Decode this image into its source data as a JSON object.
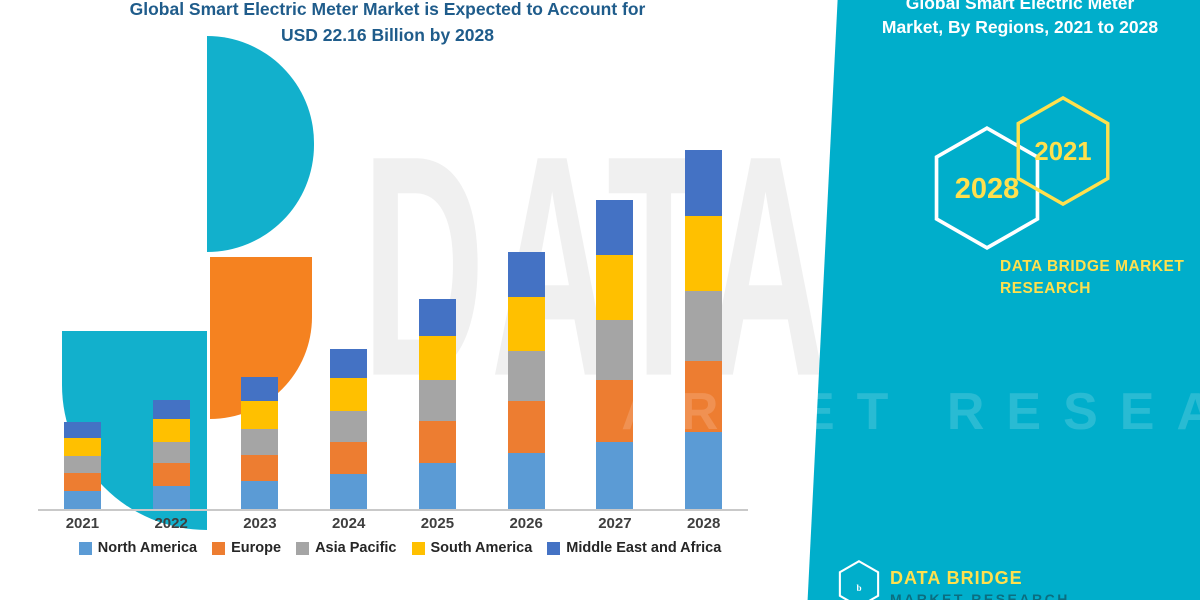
{
  "header": {
    "chart_title_line1": "Global Smart Electric Meter Market is Expected to Account for",
    "chart_title_line2": "USD 22.16 Billion by 2028"
  },
  "panel": {
    "title_line1": "Global Smart Electric Meter",
    "title_line2": "Market, By Regions, 2021 to 2028",
    "hex_end_year": "2028",
    "hex_start_year": "2021",
    "brand_line1": "DATA BRIDGE MARKET",
    "brand_line2": "RESEARCH",
    "footer_logo_letter": "b",
    "footer_brand": "DATA BRIDGE",
    "footer_sub": "MARKET RESEARCH",
    "colors": {
      "teal": "#00aecb",
      "yellow": "#ffe04d",
      "white": "#ffffff"
    }
  },
  "watermark": {
    "line1": "DATA BRIDGE",
    "line2": "MARKET RESEARCH"
  },
  "chart_data": {
    "type": "bar",
    "stacked": true,
    "title": "Global Smart Electric Meter Market is Expected to Account for USD 22.16 Billion by 2028",
    "unit": "USD Billion",
    "total_2028": 22.16,
    "categories": [
      "2021",
      "2022",
      "2023",
      "2024",
      "2025",
      "2026",
      "2027",
      "2028"
    ],
    "series": [
      {
        "name": "North America",
        "color": "#5B9BD5",
        "values": [
          1.2,
          1.5,
          1.8,
          2.2,
          2.9,
          3.5,
          4.2,
          4.8
        ]
      },
      {
        "name": "Europe",
        "color": "#ED7D31",
        "values": [
          1.1,
          1.4,
          1.6,
          2.0,
          2.6,
          3.2,
          3.8,
          4.4
        ]
      },
      {
        "name": "Asia Pacific",
        "color": "#A5A5A5",
        "values": [
          1.05,
          1.3,
          1.6,
          1.9,
          2.5,
          3.1,
          3.7,
          4.3
        ]
      },
      {
        "name": "South America",
        "color": "#FFC000",
        "values": [
          1.1,
          1.4,
          1.7,
          2.0,
          2.7,
          3.3,
          4.0,
          4.6
        ]
      },
      {
        "name": "Middle East and Africa",
        "color": "#4472C4",
        "values": [
          0.95,
          1.2,
          1.5,
          1.8,
          2.3,
          2.8,
          3.4,
          4.06
        ]
      }
    ],
    "totals_estimated": [
      5.4,
      6.8,
      8.2,
      9.9,
      13.0,
      15.9,
      19.1,
      22.16
    ],
    "ylim": [
      0,
      24
    ],
    "grid": false,
    "legend_position": "bottom"
  }
}
